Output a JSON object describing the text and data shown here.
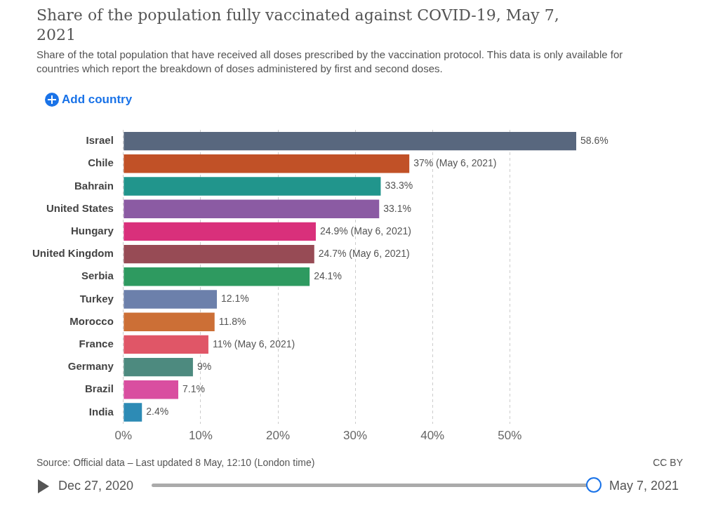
{
  "chart_data": {
    "type": "bar",
    "orientation": "horizontal",
    "title": "Share of the population fully vaccinated against COVID-19, May 7, 2021",
    "subtitle": "Share of the total population that have received all doses prescribed by the vaccination protocol. This data is only available for countries which report the breakdown of doses administered by first and second doses.",
    "categories": [
      "Israel",
      "Chile",
      "Bahrain",
      "United States",
      "Hungary",
      "United Kingdom",
      "Serbia",
      "Turkey",
      "Morocco",
      "France",
      "Germany",
      "Brazil",
      "India"
    ],
    "values": [
      58.6,
      37,
      33.3,
      33.1,
      24.9,
      24.7,
      24.1,
      12.1,
      11.8,
      11,
      9,
      7.1,
      2.4
    ],
    "colors": [
      "#58677e",
      "#c15127",
      "#21958c",
      "#8b5ba3",
      "#d9307b",
      "#974b55",
      "#2e9a60",
      "#6c80ab",
      "#cc6f36",
      "#e05667",
      "#4d8a7f",
      "#d94ea0",
      "#2d8bb5"
    ],
    "value_labels": [
      "58.6%",
      "37% (May 6, 2021)",
      "33.3%",
      "33.1%",
      "24.9% (May 6, 2021)",
      "24.7% (May 6, 2021)",
      "24.1%",
      "12.1%",
      "11.8%",
      "11% (May 6, 2021)",
      "9%",
      "7.1%",
      "2.4%"
    ],
    "xlim": [
      0,
      58.6
    ],
    "xticks": [
      {
        "value": 0,
        "label": "0%"
      },
      {
        "value": 10,
        "label": "10%"
      },
      {
        "value": 20,
        "label": "20%"
      },
      {
        "value": 30,
        "label": "30%"
      },
      {
        "value": 40,
        "label": "40%"
      },
      {
        "value": 50,
        "label": "50%"
      }
    ],
    "grid": "x",
    "legend": false,
    "annotations": [
      "Add country",
      "Source: Official data – Last updated 8 May, 12:10 (London time)",
      "CC BY",
      "Dec 27, 2020",
      "May 7, 2021"
    ]
  }
}
